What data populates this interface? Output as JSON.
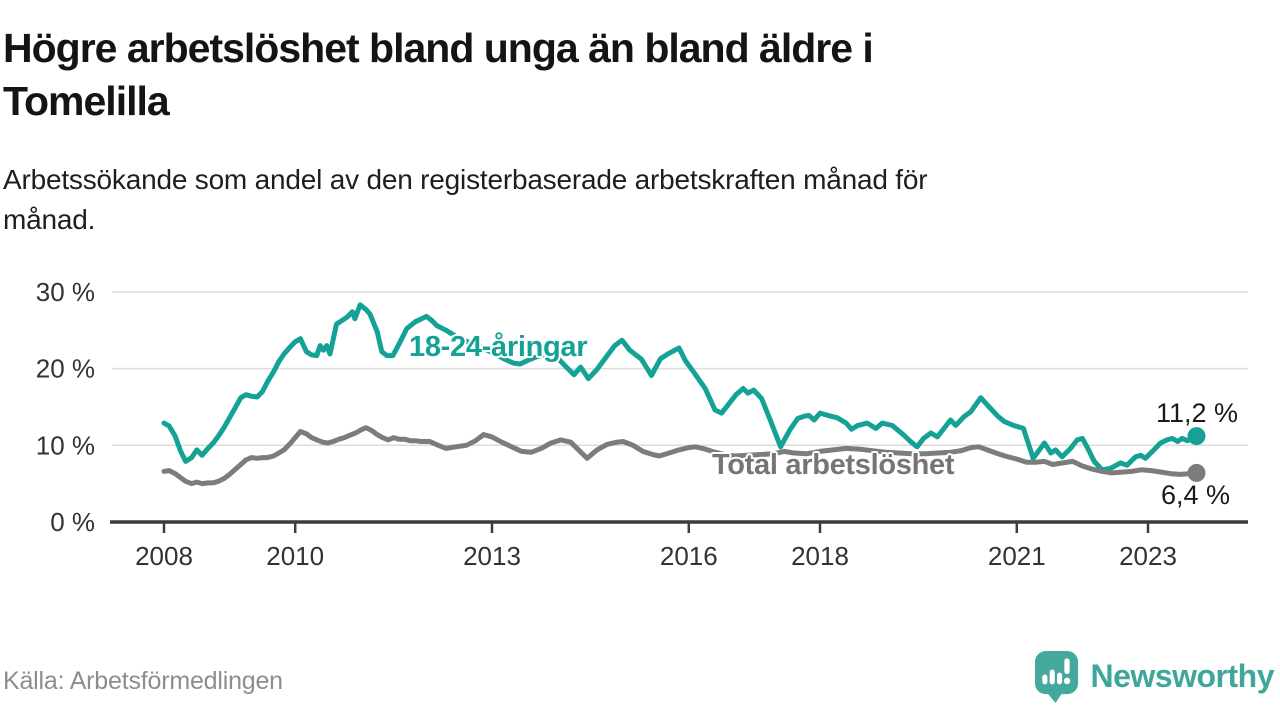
{
  "title": {
    "line1": "Högre arbetslöshet bland unga än bland äldre i",
    "line2": "Tomelilla"
  },
  "subtitle": {
    "line1": "Arbetssökande som andel av den registerbaserade arbetskraften månad för",
    "line2": "månad."
  },
  "source_note": "Källa: Arbetsförmedlingen",
  "branding": {
    "name": "Newsworthy",
    "color": "#3fa69b",
    "icon": "speech-bubble-bar-chart-icon"
  },
  "chart_data": {
    "type": "line",
    "grid": true,
    "grid_color": "#dcdcdc",
    "axis_color": "#3c3c3c",
    "x_axis": {
      "ticks": [
        2008,
        2010,
        2013,
        2016,
        2018,
        2021,
        2023
      ],
      "labels": [
        "2008",
        "2010",
        "2013",
        "2016",
        "2018",
        "2021",
        "2023"
      ],
      "range": [
        2007.3,
        2024.3
      ]
    },
    "y_axis": {
      "ticks": [
        0,
        10,
        20,
        30
      ],
      "labels": [
        "0 %",
        "10 %",
        "20 %",
        "30 %"
      ],
      "range": [
        0,
        30
      ],
      "unit": "%"
    },
    "series": [
      {
        "name": "18-24-åringar",
        "color": "#13a295",
        "end_label": "11,2 %",
        "end_value": 11.2,
        "points": [
          [
            2008.0,
            12.9
          ],
          [
            2008.08,
            12.5
          ],
          [
            2008.17,
            11.2
          ],
          [
            2008.25,
            9.3
          ],
          [
            2008.33,
            7.9
          ],
          [
            2008.42,
            8.4
          ],
          [
            2008.5,
            9.4
          ],
          [
            2008.58,
            8.7
          ],
          [
            2008.67,
            9.6
          ],
          [
            2008.75,
            10.3
          ],
          [
            2008.83,
            11.2
          ],
          [
            2008.92,
            12.4
          ],
          [
            2009.0,
            13.6
          ],
          [
            2009.08,
            14.8
          ],
          [
            2009.17,
            16.2
          ],
          [
            2009.25,
            16.6
          ],
          [
            2009.33,
            16.4
          ],
          [
            2009.42,
            16.3
          ],
          [
            2009.5,
            17.0
          ],
          [
            2009.58,
            18.3
          ],
          [
            2009.67,
            19.6
          ],
          [
            2009.75,
            20.9
          ],
          [
            2009.83,
            21.9
          ],
          [
            2009.92,
            22.8
          ],
          [
            2010.0,
            23.5
          ],
          [
            2010.08,
            23.9
          ],
          [
            2010.17,
            22.2
          ],
          [
            2010.25,
            21.8
          ],
          [
            2010.33,
            21.7
          ],
          [
            2010.38,
            23.0
          ],
          [
            2010.43,
            22.4
          ],
          [
            2010.48,
            23.0
          ],
          [
            2010.53,
            21.9
          ],
          [
            2010.63,
            25.8
          ],
          [
            2010.79,
            26.7
          ],
          [
            2010.87,
            27.4
          ],
          [
            2010.91,
            26.5
          ],
          [
            2010.99,
            28.3
          ],
          [
            2011.08,
            27.7
          ],
          [
            2011.14,
            27.1
          ],
          [
            2011.25,
            24.8
          ],
          [
            2011.32,
            22.2
          ],
          [
            2011.4,
            21.7
          ],
          [
            2011.49,
            21.7
          ],
          [
            2011.6,
            23.5
          ],
          [
            2011.7,
            25.2
          ],
          [
            2011.83,
            26.1
          ],
          [
            2011.93,
            26.5
          ],
          [
            2012.0,
            26.8
          ],
          [
            2012.08,
            26.3
          ],
          [
            2012.16,
            25.6
          ],
          [
            2012.3,
            25.0
          ],
          [
            2012.45,
            24.2
          ],
          [
            2012.6,
            23.6
          ],
          [
            2012.75,
            23.0
          ],
          [
            2012.9,
            22.5
          ],
          [
            2013.05,
            21.9
          ],
          [
            2013.2,
            21.2
          ],
          [
            2013.33,
            20.7
          ],
          [
            2013.43,
            20.6
          ],
          [
            2013.55,
            21.1
          ],
          [
            2013.7,
            21.6
          ],
          [
            2013.85,
            21.9
          ],
          [
            2014.0,
            21.4
          ],
          [
            2014.12,
            20.3
          ],
          [
            2014.25,
            19.2
          ],
          [
            2014.35,
            20.2
          ],
          [
            2014.47,
            18.7
          ],
          [
            2014.6,
            19.9
          ],
          [
            2014.73,
            21.4
          ],
          [
            2014.87,
            23.0
          ],
          [
            2014.98,
            23.7
          ],
          [
            2015.1,
            22.4
          ],
          [
            2015.28,
            21.2
          ],
          [
            2015.43,
            19.1
          ],
          [
            2015.57,
            21.3
          ],
          [
            2015.7,
            22.0
          ],
          [
            2015.85,
            22.7
          ],
          [
            2015.95,
            21.0
          ],
          [
            2016.07,
            19.6
          ],
          [
            2016.25,
            17.4
          ],
          [
            2016.4,
            14.6
          ],
          [
            2016.5,
            14.2
          ],
          [
            2016.62,
            15.5
          ],
          [
            2016.72,
            16.6
          ],
          [
            2016.83,
            17.4
          ],
          [
            2016.9,
            16.8
          ],
          [
            2016.99,
            17.2
          ],
          [
            2017.11,
            16.1
          ],
          [
            2017.25,
            13.1
          ],
          [
            2017.4,
            9.8
          ],
          [
            2017.54,
            12.0
          ],
          [
            2017.66,
            13.5
          ],
          [
            2017.76,
            13.8
          ],
          [
            2017.83,
            13.9
          ],
          [
            2017.91,
            13.3
          ],
          [
            2018.0,
            14.2
          ],
          [
            2018.12,
            13.9
          ],
          [
            2018.26,
            13.6
          ],
          [
            2018.4,
            12.9
          ],
          [
            2018.48,
            12.1
          ],
          [
            2018.58,
            12.6
          ],
          [
            2018.72,
            12.9
          ],
          [
            2018.85,
            12.2
          ],
          [
            2018.95,
            12.9
          ],
          [
            2019.1,
            12.6
          ],
          [
            2019.28,
            11.3
          ],
          [
            2019.38,
            10.5
          ],
          [
            2019.48,
            9.8
          ],
          [
            2019.58,
            10.9
          ],
          [
            2019.69,
            11.6
          ],
          [
            2019.79,
            11.1
          ],
          [
            2019.89,
            12.2
          ],
          [
            2019.99,
            13.3
          ],
          [
            2020.07,
            12.6
          ],
          [
            2020.19,
            13.7
          ],
          [
            2020.3,
            14.4
          ],
          [
            2020.45,
            16.2
          ],
          [
            2020.6,
            14.8
          ],
          [
            2020.71,
            13.8
          ],
          [
            2020.81,
            13.1
          ],
          [
            2020.95,
            12.6
          ],
          [
            2021.1,
            12.2
          ],
          [
            2021.25,
            8.3
          ],
          [
            2021.42,
            10.3
          ],
          [
            2021.52,
            9.0
          ],
          [
            2021.59,
            9.4
          ],
          [
            2021.69,
            8.5
          ],
          [
            2021.82,
            9.6
          ],
          [
            2021.92,
            10.7
          ],
          [
            2022.0,
            10.9
          ],
          [
            2022.07,
            9.8
          ],
          [
            2022.18,
            7.9
          ],
          [
            2022.3,
            6.8
          ],
          [
            2022.43,
            7.0
          ],
          [
            2022.58,
            7.7
          ],
          [
            2022.68,
            7.4
          ],
          [
            2022.81,
            8.5
          ],
          [
            2022.89,
            8.7
          ],
          [
            2022.96,
            8.3
          ],
          [
            2023.09,
            9.4
          ],
          [
            2023.19,
            10.3
          ],
          [
            2023.29,
            10.7
          ],
          [
            2023.37,
            10.9
          ],
          [
            2023.45,
            10.5
          ],
          [
            2023.52,
            10.9
          ],
          [
            2023.6,
            10.6
          ],
          [
            2023.74,
            11.2
          ]
        ]
      },
      {
        "name": "Total arbetslöshet",
        "color": "#7c7c7c",
        "end_label": "6,4 %",
        "end_value": 6.4,
        "points": [
          [
            2008.0,
            6.6
          ],
          [
            2008.08,
            6.7
          ],
          [
            2008.17,
            6.3
          ],
          [
            2008.25,
            5.8
          ],
          [
            2008.33,
            5.3
          ],
          [
            2008.42,
            5.0
          ],
          [
            2008.5,
            5.2
          ],
          [
            2008.58,
            5.0
          ],
          [
            2008.67,
            5.1
          ],
          [
            2008.75,
            5.1
          ],
          [
            2008.83,
            5.3
          ],
          [
            2008.92,
            5.7
          ],
          [
            2009.0,
            6.2
          ],
          [
            2009.08,
            6.8
          ],
          [
            2009.17,
            7.5
          ],
          [
            2009.25,
            8.1
          ],
          [
            2009.33,
            8.4
          ],
          [
            2009.42,
            8.3
          ],
          [
            2009.5,
            8.4
          ],
          [
            2009.58,
            8.4
          ],
          [
            2009.67,
            8.6
          ],
          [
            2009.75,
            9.0
          ],
          [
            2009.83,
            9.4
          ],
          [
            2009.92,
            10.2
          ],
          [
            2010.0,
            11.0
          ],
          [
            2010.08,
            11.8
          ],
          [
            2010.17,
            11.5
          ],
          [
            2010.25,
            11.0
          ],
          [
            2010.33,
            10.7
          ],
          [
            2010.42,
            10.4
          ],
          [
            2010.5,
            10.3
          ],
          [
            2010.58,
            10.5
          ],
          [
            2010.67,
            10.8
          ],
          [
            2010.75,
            11.0
          ],
          [
            2010.83,
            11.3
          ],
          [
            2010.92,
            11.6
          ],
          [
            2011.0,
            12.0
          ],
          [
            2011.08,
            12.3
          ],
          [
            2011.17,
            11.9
          ],
          [
            2011.25,
            11.4
          ],
          [
            2011.33,
            11.0
          ],
          [
            2011.42,
            10.7
          ],
          [
            2011.5,
            11.0
          ],
          [
            2011.58,
            10.8
          ],
          [
            2011.67,
            10.8
          ],
          [
            2011.75,
            10.6
          ],
          [
            2011.83,
            10.6
          ],
          [
            2011.92,
            10.5
          ],
          [
            2012.05,
            10.5
          ],
          [
            2012.18,
            10.0
          ],
          [
            2012.3,
            9.6
          ],
          [
            2012.45,
            9.8
          ],
          [
            2012.61,
            10.0
          ],
          [
            2012.75,
            10.6
          ],
          [
            2012.87,
            11.4
          ],
          [
            2013.0,
            11.1
          ],
          [
            2013.15,
            10.4
          ],
          [
            2013.3,
            9.8
          ],
          [
            2013.45,
            9.2
          ],
          [
            2013.6,
            9.1
          ],
          [
            2013.75,
            9.6
          ],
          [
            2013.9,
            10.3
          ],
          [
            2014.05,
            10.7
          ],
          [
            2014.2,
            10.4
          ],
          [
            2014.32,
            9.4
          ],
          [
            2014.45,
            8.3
          ],
          [
            2014.6,
            9.4
          ],
          [
            2014.75,
            10.1
          ],
          [
            2014.9,
            10.4
          ],
          [
            2015.0,
            10.5
          ],
          [
            2015.15,
            10.0
          ],
          [
            2015.3,
            9.2
          ],
          [
            2015.45,
            8.8
          ],
          [
            2015.55,
            8.6
          ],
          [
            2015.7,
            9.0
          ],
          [
            2015.85,
            9.4
          ],
          [
            2016.0,
            9.7
          ],
          [
            2016.1,
            9.8
          ],
          [
            2016.25,
            9.5
          ],
          [
            2016.4,
            9.1
          ],
          [
            2016.55,
            8.8
          ],
          [
            2016.7,
            8.6
          ],
          [
            2016.9,
            8.7
          ],
          [
            2017.1,
            8.8
          ],
          [
            2017.3,
            8.9
          ],
          [
            2017.45,
            9.2
          ],
          [
            2017.6,
            9.0
          ],
          [
            2017.8,
            8.9
          ],
          [
            2018.0,
            9.2
          ],
          [
            2018.2,
            9.4
          ],
          [
            2018.4,
            9.6
          ],
          [
            2018.6,
            9.5
          ],
          [
            2018.8,
            9.3
          ],
          [
            2019.0,
            9.1
          ],
          [
            2019.2,
            9.0
          ],
          [
            2019.4,
            8.9
          ],
          [
            2019.6,
            8.9
          ],
          [
            2019.8,
            9.0
          ],
          [
            2020.0,
            9.1
          ],
          [
            2020.15,
            9.3
          ],
          [
            2020.3,
            9.7
          ],
          [
            2020.42,
            9.8
          ],
          [
            2020.55,
            9.4
          ],
          [
            2020.68,
            9.0
          ],
          [
            2020.82,
            8.6
          ],
          [
            2021.0,
            8.2
          ],
          [
            2021.15,
            7.8
          ],
          [
            2021.3,
            7.8
          ],
          [
            2021.42,
            7.9
          ],
          [
            2021.55,
            7.5
          ],
          [
            2021.7,
            7.7
          ],
          [
            2021.85,
            7.9
          ],
          [
            2022.0,
            7.3
          ],
          [
            2022.15,
            6.9
          ],
          [
            2022.3,
            6.6
          ],
          [
            2022.45,
            6.4
          ],
          [
            2022.6,
            6.5
          ],
          [
            2022.75,
            6.6
          ],
          [
            2022.9,
            6.8
          ],
          [
            2023.05,
            6.7
          ],
          [
            2023.2,
            6.5
          ],
          [
            2023.35,
            6.3
          ],
          [
            2023.5,
            6.2
          ],
          [
            2023.62,
            6.3
          ],
          [
            2023.74,
            6.4
          ]
        ]
      }
    ]
  }
}
